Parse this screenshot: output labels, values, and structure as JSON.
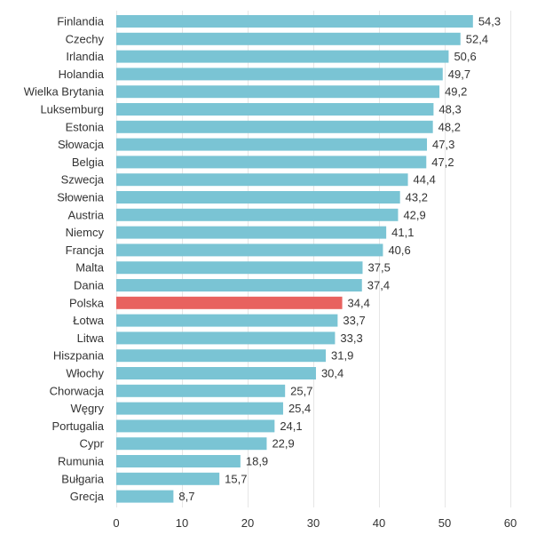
{
  "chart_data": {
    "type": "bar",
    "orientation": "horizontal",
    "title": "",
    "xlabel": "",
    "ylabel": "",
    "xlim": [
      0,
      60
    ],
    "ticks": [
      0,
      10,
      20,
      30,
      40,
      50,
      60
    ],
    "grid": true,
    "categories": [
      "Finlandia",
      "Czechy",
      "Irlandia",
      "Holandia",
      "Wielka Brytania",
      "Luksemburg",
      "Estonia",
      "Słowacja",
      "Belgia",
      "Szwecja",
      "Słowenia",
      "Austria",
      "Niemcy",
      "Francja",
      "Malta",
      "Dania",
      "Polska",
      "Łotwa",
      "Litwa",
      "Hiszpania",
      "Włochy",
      "Chorwacja",
      "Węgry",
      "Portugalia",
      "Cypr",
      "Rumunia",
      "Bułgaria",
      "Grecja"
    ],
    "values": [
      54.3,
      52.4,
      50.6,
      49.7,
      49.2,
      48.3,
      48.2,
      47.3,
      47.2,
      44.4,
      43.2,
      42.9,
      41.1,
      40.6,
      37.5,
      37.4,
      34.4,
      33.7,
      33.3,
      31.9,
      30.4,
      25.7,
      25.4,
      24.1,
      22.9,
      18.9,
      15.7,
      8.7
    ],
    "value_labels": [
      "54,3",
      "52,4",
      "50,6",
      "49,7",
      "49,2",
      "48,3",
      "48,2",
      "47,3",
      "47,2",
      "44,4",
      "43,2",
      "42,9",
      "41,1",
      "40,6",
      "37,5",
      "37,4",
      "34,4",
      "33,7",
      "33,3",
      "31,9",
      "30,4",
      "25,7",
      "25,4",
      "24,1",
      "22,9",
      "18,9",
      "15,7",
      "8,7"
    ],
    "highlight": "Polska",
    "colors": {
      "bar": "#7ac4d4",
      "highlight": "#e8625f",
      "grid": "#e6e6e6",
      "axis": "#c8c8c8"
    }
  }
}
